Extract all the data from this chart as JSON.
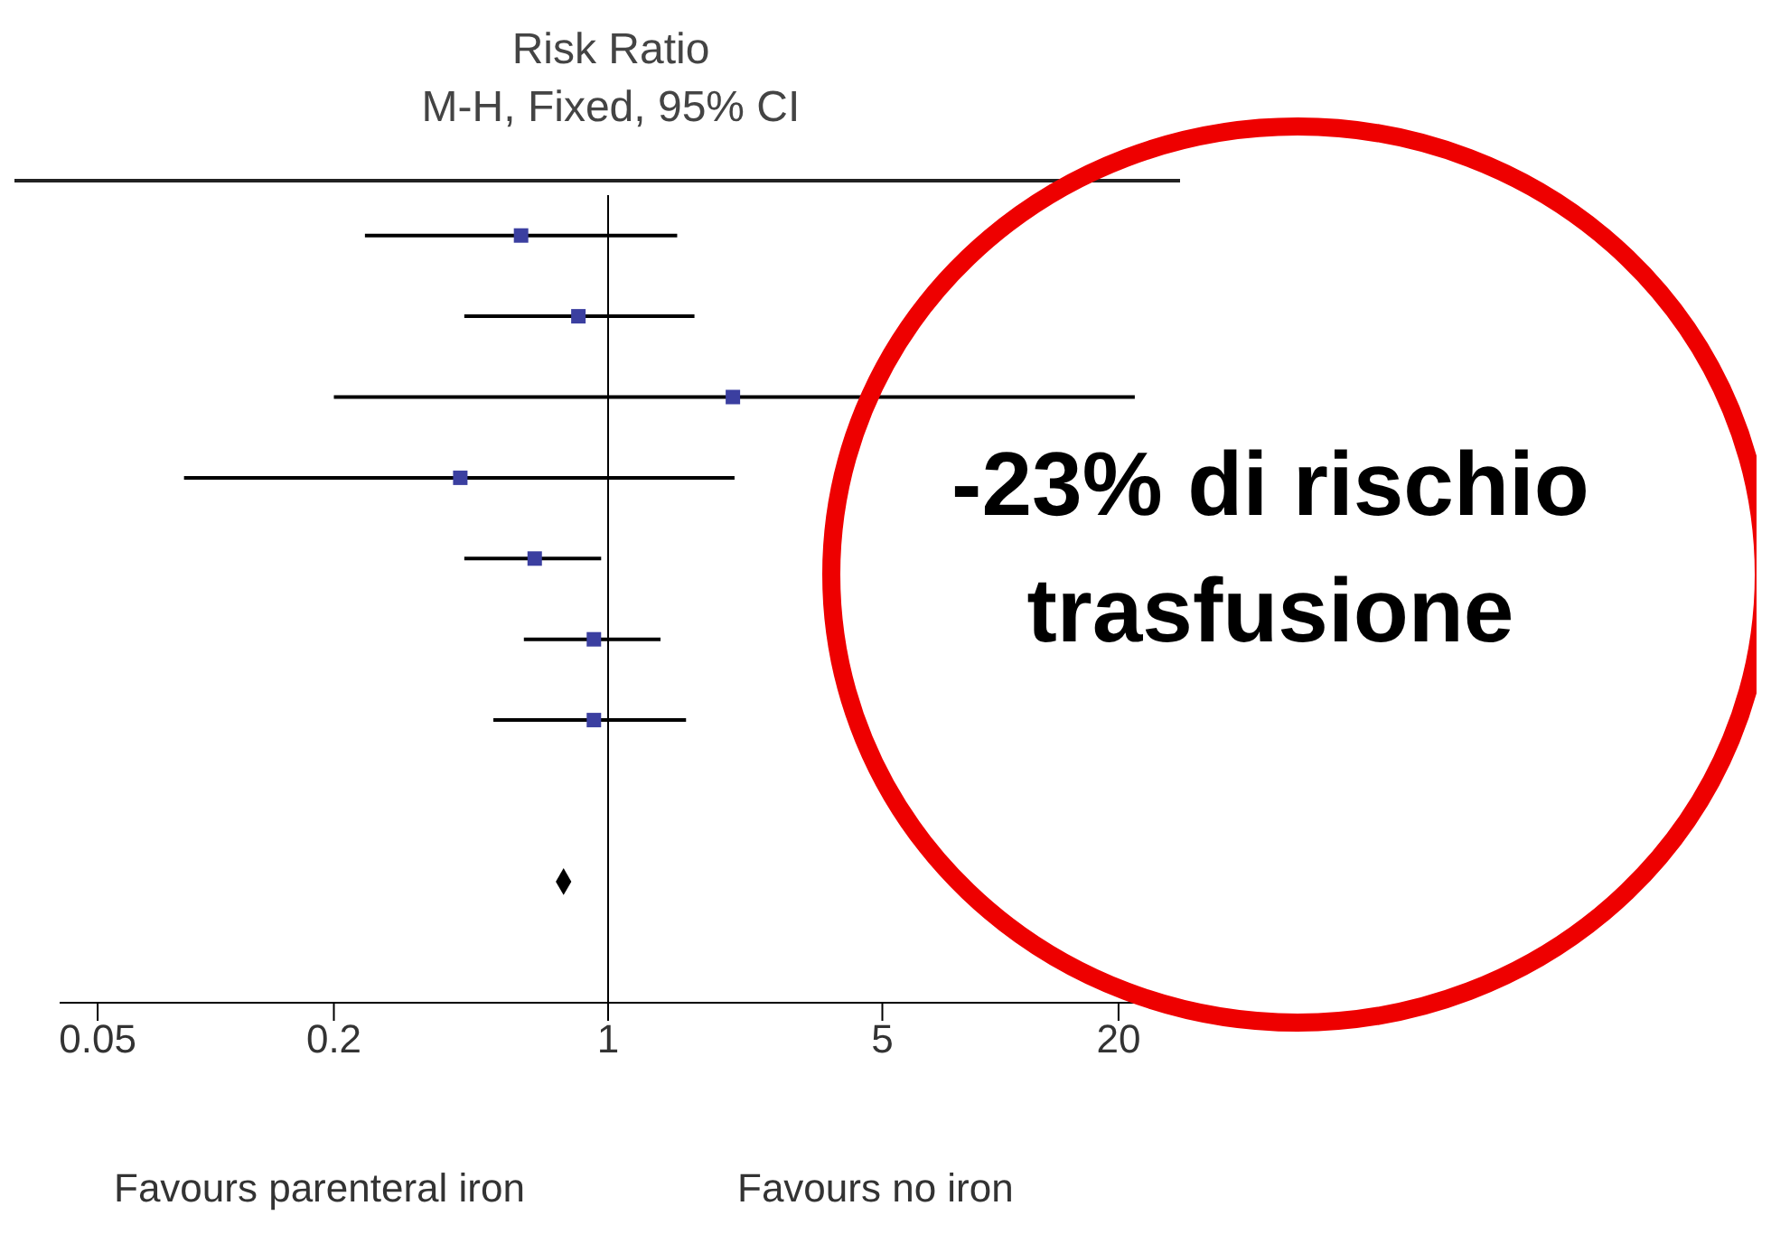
{
  "chart_data": {
    "type": "scatter",
    "title": "Risk Ratio",
    "subtitle": "M-H, Fixed, 95% CI",
    "orientation": "horizontal",
    "categories": [
      null,
      null,
      null,
      null,
      null,
      null,
      null,
      null,
      null,
      null
    ],
    "series": [
      {
        "color": "#3b3fa0",
        "marker": "square",
        "values": [
          0.6,
          0.84,
          2.08,
          0.42,
          0.65,
          0.92,
          0.92,
          null,
          null,
          null
        ],
        "errors": [
          [
            0.24,
            1.5
          ],
          [
            0.43,
            1.66
          ],
          [
            0.2,
            22
          ],
          [
            0.083,
            2.1
          ],
          [
            0.43,
            0.96
          ],
          [
            0.61,
            1.36
          ],
          [
            0.51,
            1.58
          ],
          null,
          null,
          null
        ]
      },
      {
        "color": "#000000",
        "marker": "diamond",
        "values": [
          null,
          null,
          null,
          null,
          null,
          null,
          null,
          null,
          0.77,
          null
        ]
      }
    ],
    "xlim": [
      0.04,
      25
    ],
    "xticks": [
      0.05,
      0.2,
      1,
      5,
      20
    ],
    "log": "x",
    "tick_labels": "x",
    "ref_lines": [
      {
        "axis": "x",
        "value": 1
      }
    ],
    "annotations": [
      "Favours parenteral iron",
      "Favours no iron",
      "-23% di rischio trasfusione"
    ]
  }
}
